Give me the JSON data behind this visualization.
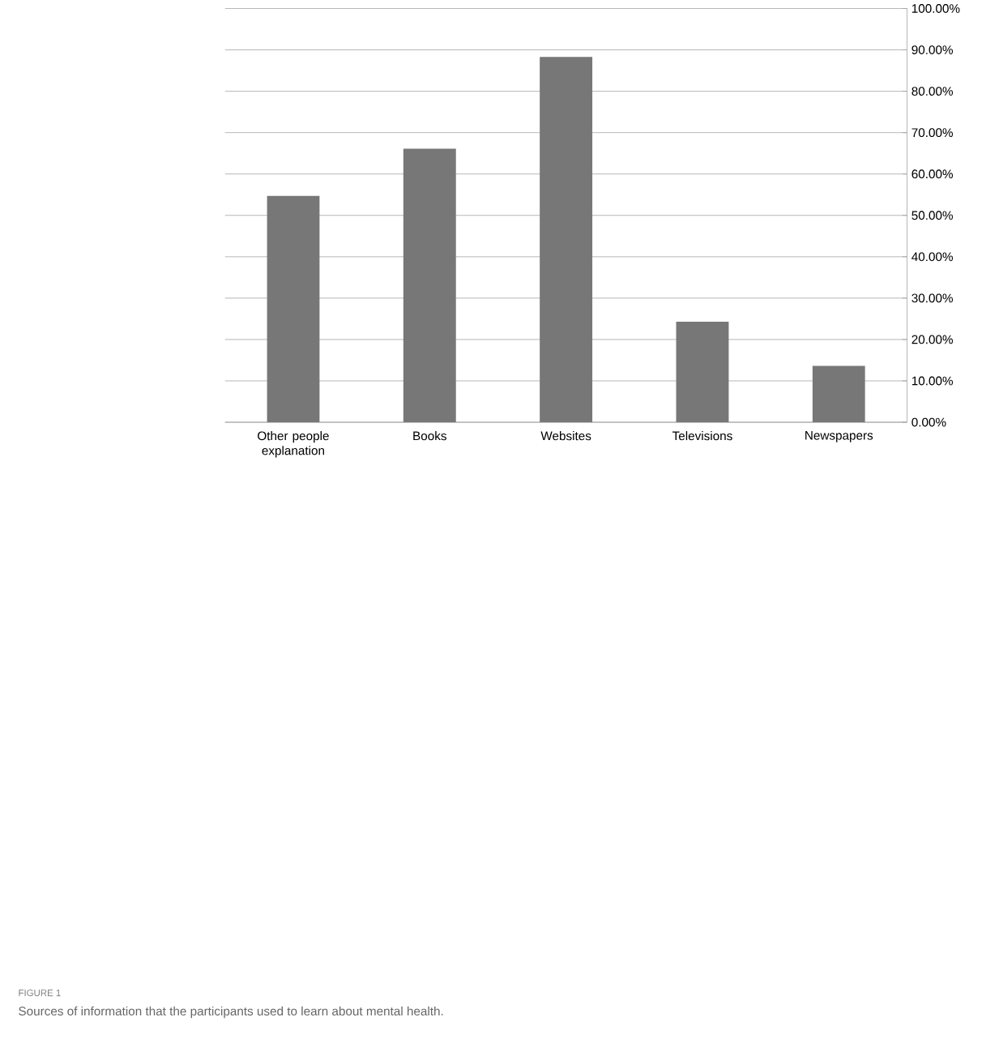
{
  "chart_data": {
    "type": "bar",
    "categories": [
      "Other people explanation",
      "Books",
      "Websites",
      "Televisions",
      "Newspapers"
    ],
    "values": [
      54.7,
      66.1,
      88.3,
      24.3,
      13.6
    ],
    "color": "#777777",
    "ylim": [
      0,
      100
    ],
    "yticks": [
      {
        "value": 0,
        "label": "0.00%"
      },
      {
        "value": 10,
        "label": "10.00%"
      },
      {
        "value": 20,
        "label": "20.00%"
      },
      {
        "value": 30,
        "label": "30.00%"
      },
      {
        "value": 40,
        "label": "40.00%"
      },
      {
        "value": 50,
        "label": "50.00%"
      },
      {
        "value": 60,
        "label": "60.00%"
      },
      {
        "value": 70,
        "label": "70.00%"
      },
      {
        "value": 80,
        "label": "80.00%"
      },
      {
        "value": 90,
        "label": "90.00%"
      },
      {
        "value": 100,
        "label": "100.00%"
      }
    ],
    "grid": "y",
    "annotations": [
      "FIGURE 1",
      "Sources of information that the participants used to learn about mental health."
    ]
  }
}
